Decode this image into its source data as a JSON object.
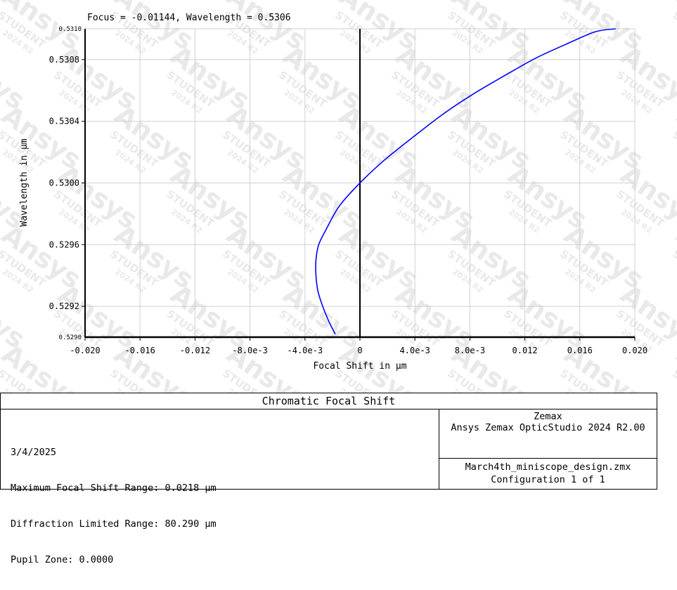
{
  "chart_data": {
    "type": "line",
    "top_label": "Focus = -0.01144, Wavelength = 0.5306",
    "xlabel": "Focal Shift in µm",
    "ylabel": "Wavelength in µm",
    "xlim": [
      -0.02,
      0.02
    ],
    "ylim": [
      0.529,
      0.531
    ],
    "x_ticks": [
      -0.02,
      -0.016,
      -0.012,
      -0.008,
      -0.004,
      0,
      0.004,
      0.008,
      0.012,
      0.016,
      0.02
    ],
    "x_tick_labels": [
      "-0.020",
      "-0.016",
      "-0.012",
      "-8.0e-3",
      "-4.0e-3",
      "0",
      "4.0e-3",
      "8.0e-3",
      "0.012",
      "0.016",
      "0.020"
    ],
    "y_ticks": [
      0.5292,
      0.5296,
      0.53,
      0.5304,
      0.5308
    ],
    "y_tick_labels": [
      "0.5292",
      "0.5296",
      "0.5300",
      "0.5304",
      "0.5308"
    ],
    "y_limit_labels": [
      "0.5290",
      "0.5310"
    ],
    "grid": true,
    "series": [
      {
        "color": "#0000ff",
        "x": [
          -0.0018,
          -0.00225,
          -0.00271,
          -0.00306,
          -0.0032,
          -0.0032,
          -0.003,
          -0.00245,
          -0.0015,
          0.0,
          0.0018,
          0.0039,
          0.0061,
          0.0083,
          0.0106,
          0.0128,
          0.015,
          0.0171,
          0.0186
        ],
        "y": [
          0.52902,
          0.5291,
          0.5292,
          0.5293,
          0.5294,
          0.5295,
          0.5296,
          0.5297,
          0.52985,
          0.53,
          0.53015,
          0.5303,
          0.53045,
          0.53058,
          0.5307,
          0.53081,
          0.5309,
          0.53098,
          0.531
        ]
      }
    ]
  },
  "panel": {
    "title": "Chromatic Focal Shift",
    "date": "3/4/2025",
    "max_range": "Maximum Focal Shift Range: 0.0218 µm",
    "diff_range": "Diffraction Limited Range: 80.290 µm",
    "pupil_zone": "Pupil Zone: 0.0000",
    "company": "Zemax",
    "product": "Ansys Zemax OpticStudio 2024 R2.00",
    "filename": "March4th_miniscope_design.zmx",
    "configuration": "Configuration 1 of 1"
  },
  "watermark": {
    "brand": "Ansys",
    "tag": "STUDENT",
    "version": "2024 R2"
  }
}
